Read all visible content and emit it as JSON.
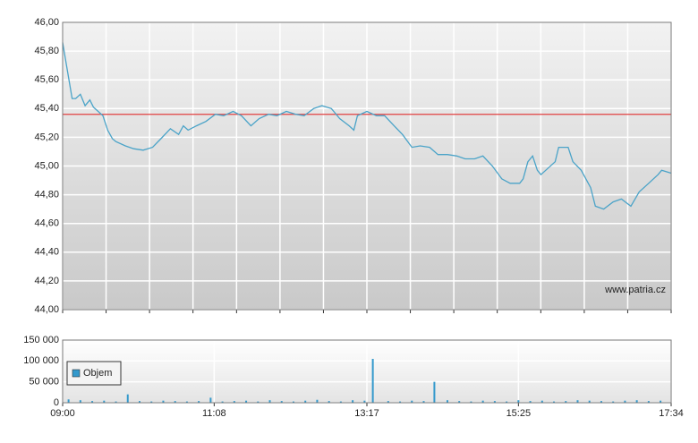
{
  "chart_data": [
    {
      "type": "line",
      "x": [
        540,
        548,
        551,
        555,
        559,
        563,
        566,
        570,
        574,
        578,
        582,
        585,
        593,
        600,
        608,
        616,
        623,
        631,
        638,
        642,
        646,
        653,
        661,
        669,
        676,
        684,
        691,
        699,
        706,
        714,
        721,
        729,
        737,
        744,
        752,
        759,
        767,
        774,
        782,
        786,
        789,
        797,
        805,
        812,
        820,
        827,
        835,
        842,
        850,
        857,
        865,
        873,
        880,
        888,
        895,
        903,
        911,
        918,
        926,
        929,
        933,
        937,
        941,
        944,
        948,
        956,
        959,
        967,
        971,
        978,
        986,
        990,
        997,
        1005,
        1012,
        1020,
        1027,
        1035,
        1043,
        1046,
        1054
      ],
      "values": [
        45.86,
        45.47,
        45.47,
        45.5,
        45.42,
        45.46,
        45.41,
        45.38,
        45.35,
        45.25,
        45.19,
        45.17,
        45.14,
        45.12,
        45.11,
        45.13,
        45.19,
        45.26,
        45.22,
        45.28,
        45.25,
        45.28,
        45.31,
        45.36,
        45.35,
        45.38,
        45.35,
        45.28,
        45.33,
        45.36,
        45.35,
        45.38,
        45.36,
        45.35,
        45.4,
        45.42,
        45.4,
        45.33,
        45.28,
        45.25,
        45.35,
        45.38,
        45.35,
        45.35,
        45.28,
        45.22,
        45.13,
        45.14,
        45.13,
        45.08,
        45.08,
        45.07,
        45.05,
        45.05,
        45.07,
        45.0,
        44.91,
        44.88,
        44.88,
        44.91,
        45.03,
        45.07,
        44.97,
        44.94,
        44.97,
        45.03,
        45.13,
        45.13,
        45.03,
        44.97,
        44.85,
        44.72,
        44.7,
        44.75,
        44.77,
        44.72,
        44.82,
        44.88,
        44.94,
        44.97,
        44.95
      ],
      "color": "#4aa3c8",
      "reference_line": 45.36,
      "reference_color": "#e04040",
      "xlim": [
        540,
        1054
      ],
      "xticks": [
        540,
        576.7,
        613.4,
        650.1,
        686.9,
        723.6,
        760.3,
        797,
        833.7,
        870.4,
        907.1,
        943.9,
        980.6,
        1017.3,
        1054
      ],
      "ylim": [
        44,
        46
      ],
      "yticks": [
        {
          "value": 44,
          "label": "44,00"
        },
        {
          "value": 44.2,
          "label": "44,20"
        },
        {
          "value": 44.4,
          "label": "44,40"
        },
        {
          "value": 44.6,
          "label": "44,60"
        },
        {
          "value": 44.8,
          "label": "44,80"
        },
        {
          "value": 45,
          "label": "45,00"
        },
        {
          "value": 45.2,
          "label": "45,20"
        },
        {
          "value": 45.4,
          "label": "45,40"
        },
        {
          "value": 45.6,
          "label": "45,60"
        },
        {
          "value": 45.8,
          "label": "45,80"
        },
        {
          "value": 46,
          "label": "46,00"
        }
      ],
      "grid": true,
      "watermark": "www.patria.cz"
    },
    {
      "type": "bar",
      "x": [
        545,
        555,
        565,
        575,
        585,
        595,
        605,
        615,
        625,
        635,
        645,
        655,
        665,
        675,
        685,
        695,
        705,
        715,
        725,
        735,
        745,
        755,
        765,
        775,
        785,
        795,
        802,
        815,
        825,
        835,
        845,
        854,
        865,
        875,
        885,
        895,
        905,
        915,
        925,
        935,
        945,
        955,
        965,
        975,
        985,
        995,
        1005,
        1015,
        1025,
        1035,
        1045
      ],
      "series": [
        {
          "name": "Objem",
          "color": "#3399cc",
          "values": [
            8000,
            6000,
            4000,
            5000,
            3000,
            20000,
            4000,
            3000,
            5000,
            4000,
            3000,
            4000,
            12000,
            3000,
            4000,
            5000,
            3000,
            6000,
            4000,
            3000,
            5000,
            7000,
            4000,
            3000,
            6000,
            5000,
            105000,
            4000,
            3000,
            5000,
            4000,
            50000,
            6000,
            4000,
            3000,
            5000,
            4000,
            3000,
            6000,
            4000,
            5000,
            3000,
            4000,
            6000,
            5000,
            4000,
            3000,
            5000,
            6000,
            4000,
            5000
          ]
        }
      ],
      "xlim": [
        540,
        1054
      ],
      "xticks": [
        {
          "value": 540,
          "label": "09:00"
        },
        {
          "value": 668,
          "label": "11:08"
        },
        {
          "value": 797,
          "label": "13:17"
        },
        {
          "value": 925,
          "label": "15:25"
        },
        {
          "value": 1054,
          "label": "17:34"
        }
      ],
      "ylim": [
        0,
        150000
      ],
      "yticks": [
        0,
        {
          "value": 50000,
          "label": "50 000"
        },
        {
          "value": 100000,
          "label": "100 000"
        },
        {
          "value": 150000,
          "label": "150 000"
        }
      ],
      "grid": true
    }
  ]
}
